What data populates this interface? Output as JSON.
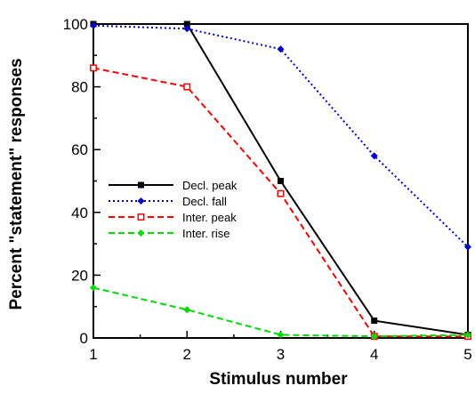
{
  "chart_data": {
    "type": "line",
    "title": "",
    "xlabel": "Stimulus  number",
    "ylabel": "Percent  \"statement\"  responses",
    "x": [
      1,
      2,
      3,
      4,
      5
    ],
    "xlim": [
      1,
      5
    ],
    "ylim": [
      0,
      100
    ],
    "x_ticks": [
      "1",
      "2",
      "3",
      "4",
      "5"
    ],
    "y_ticks": [
      "0",
      "20",
      "40",
      "60",
      "80",
      "100"
    ],
    "grid": false,
    "legend_position": "left-center",
    "series": [
      {
        "name": "Decl. peak",
        "values": [
          100,
          100,
          50,
          5.5,
          1
        ],
        "color": "#000000",
        "line_style": "solid",
        "marker": "filled-square"
      },
      {
        "name": "Decl. fall",
        "values": [
          99.5,
          98.5,
          92,
          58,
          29
        ],
        "color": "#0000dd",
        "line_style": "dotted",
        "marker": "filled-diamond"
      },
      {
        "name": "Inter. peak",
        "values": [
          86,
          80,
          46,
          0.5,
          0.5
        ],
        "color": "#ff0000",
        "line_style": "dashed",
        "marker": "open-square"
      },
      {
        "name": "Inter. rise",
        "values": [
          16,
          9,
          1,
          0.5,
          1
        ],
        "color": "#00dd00",
        "line_style": "dashed",
        "marker": "filled-diamond"
      }
    ]
  }
}
